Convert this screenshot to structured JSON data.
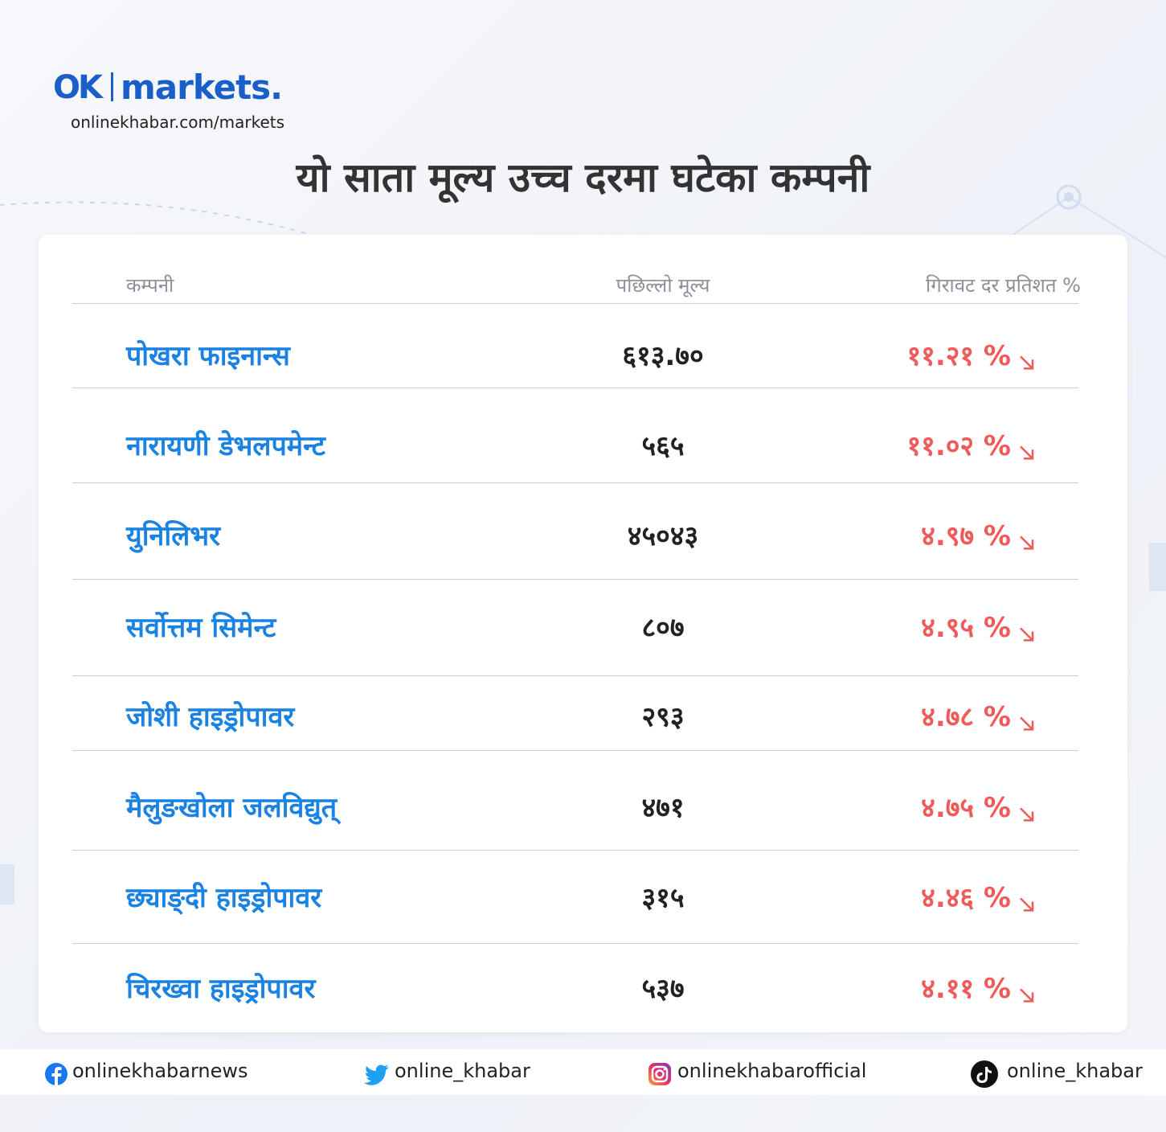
{
  "brand": {
    "mark": "OK",
    "name": "markets.",
    "url": "onlinekhabar.com/markets"
  },
  "title": "यो साता मूल्य उच्च दरमा घटेका कम्पनी",
  "table": {
    "columns": [
      "कम्पनी",
      "पछिल्लो मूल्य",
      "गिरावट दर प्रतिशत %"
    ],
    "rows": [
      [
        "पोखरा फाइनान्स",
        "६१३.७०",
        "११.२१ %"
      ],
      [
        "नारायणी डेभलपमेन्ट",
        "५६५",
        "११.०२ %"
      ],
      [
        "युनिलिभर",
        "४५०४३",
        "४.९७ %"
      ],
      [
        "सर्वोत्तम सिमेन्ट",
        "८०७",
        "४.९५ %"
      ],
      [
        "जोशी हाइड्रोपावर",
        "२९३",
        "४.७८ %"
      ],
      [
        "मैलुङखोला जलविद्युत्",
        "४७१",
        "४.७५ %"
      ],
      [
        "छ्याङ्दी हाइड्रोपावर",
        "३१५",
        "४.४६ %"
      ],
      [
        "चिरख्वा हाइड्रोपावर",
        "५३७",
        "४.११ %"
      ]
    ]
  },
  "footer": {
    "facebook": "onlinekhabarnews",
    "twitter": "online_khabar",
    "instagram": "onlinekhabarofficial",
    "tiktok": "online_khabar"
  }
}
